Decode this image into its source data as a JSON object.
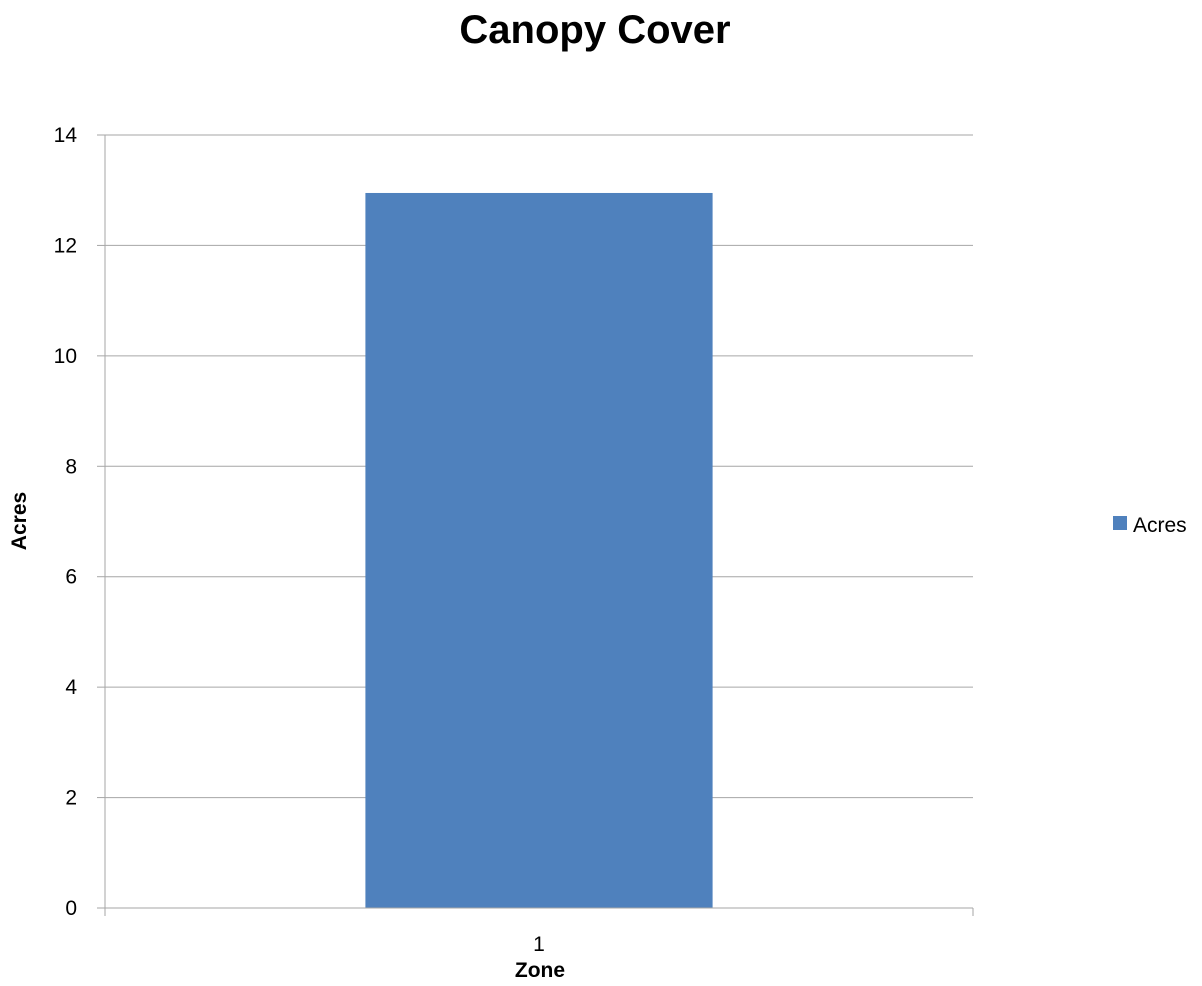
{
  "chart_data": {
    "type": "bar",
    "title": "Canopy Cover",
    "xlabel": "Zone",
    "ylabel": "Acres",
    "categories": [
      "1"
    ],
    "series": [
      {
        "name": "Acres",
        "values": [
          12.95
        ],
        "color": "#4f81bd"
      }
    ],
    "ylim": [
      0,
      14
    ],
    "yticks": [
      0,
      2,
      4,
      6,
      8,
      10,
      12,
      14
    ],
    "ytick_labels": [
      "0",
      "2",
      "4",
      "6",
      "8",
      "10",
      "12",
      "14"
    ],
    "grid": true,
    "legend_position": "right"
  }
}
